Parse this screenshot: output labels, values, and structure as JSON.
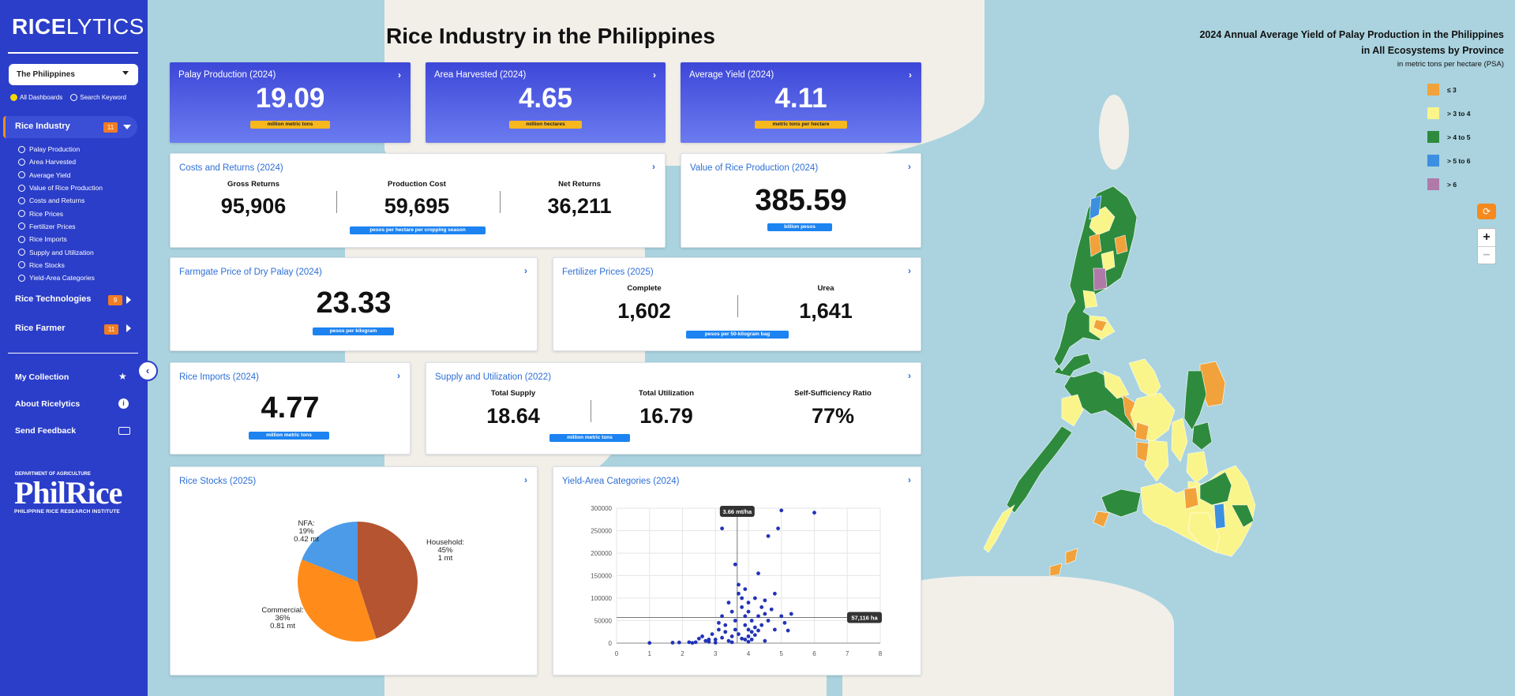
{
  "sidebar": {
    "logo_bold": "RICE",
    "logo_light": "LYTICS",
    "country_select": "The Philippines",
    "radio_all": "All Dashboards",
    "radio_search": "Search Keyword",
    "sections": [
      {
        "label": "Rice Industry",
        "count": "11"
      },
      {
        "label": "Rice Technologies",
        "count": "9"
      },
      {
        "label": "Rice Farmer",
        "count": "11"
      }
    ],
    "sub_items": [
      "Palay Production",
      "Area Harvested",
      "Average Yield",
      "Value of Rice Production",
      "Costs and Returns",
      "Rice Prices",
      "Fertilizer Prices",
      "Rice Imports",
      "Supply and Utilization",
      "Rice Stocks",
      "Yield-Area Categories"
    ],
    "links": [
      {
        "label": "My Collection",
        "icon": "star-icon"
      },
      {
        "label": "About Ricelytics",
        "icon": "info-icon"
      },
      {
        "label": "Send Feedback",
        "icon": "keyboard-icon"
      }
    ],
    "da_label": "DEPARTMENT OF AGRICULTURE",
    "philrice": "PhilRice",
    "philrice_full": "PHILIPPINE RICE RESEARCH INSTITUTE"
  },
  "page_title": "Rice Industry in the Philippines",
  "cards": {
    "palay": {
      "title": "Palay Production (2024)",
      "value": "19.09",
      "unit": "million metric tons"
    },
    "area": {
      "title": "Area Harvested (2024)",
      "value": "4.65",
      "unit": "million hectares"
    },
    "yield": {
      "title": "Average Yield (2024)",
      "value": "4.11",
      "unit": "metric tons per hectare"
    },
    "costs": {
      "title": "Costs and Returns (2024)",
      "cols": [
        {
          "label": "Gross Returns",
          "value": "95,906"
        },
        {
          "label": "Production Cost",
          "value": "59,695"
        },
        {
          "label": "Net Returns",
          "value": "36,211"
        }
      ],
      "unit": "pesos per hectare per cropping season"
    },
    "value": {
      "title": "Value of Rice Production (2024)",
      "value": "385.59",
      "unit": "billion pesos"
    },
    "farmgate": {
      "title": "Farmgate Price of Dry Palay (2024)",
      "value": "23.33",
      "unit": "pesos per kilogram"
    },
    "fertilizer": {
      "title": "Fertilizer Prices (2025)",
      "cols": [
        {
          "label": "Complete",
          "value": "1,602"
        },
        {
          "label": "Urea",
          "value": "1,641"
        }
      ],
      "unit": "pesos per 50-kilogram bag"
    },
    "imports": {
      "title": "Rice Imports (2024)",
      "value": "4.77",
      "unit": "million metric tons"
    },
    "supply": {
      "title": "Supply and Utilization (2022)",
      "cols": [
        {
          "label": "Total Supply",
          "value": "18.64"
        },
        {
          "label": "Total Utilization",
          "value": "16.79"
        },
        {
          "label": "Self-Sufficiency Ratio",
          "value": "77%"
        }
      ],
      "unit": "million metric tons"
    },
    "stocks": {
      "title": "Rice Stocks (2025)"
    },
    "yield_area": {
      "title": "Yield-Area Categories (2024)",
      "tooltip_x": "3.66 mt/ha",
      "tooltip_y": "57,116 ha"
    }
  },
  "map": {
    "title_line1": "2024 Annual Average Yield of Palay Production in the Philippines",
    "title_line2": "in All Ecosystems by Province",
    "subtitle": "in metric tons per hectare (PSA)",
    "legend": [
      {
        "label": "≤ 3",
        "color": "#f2a23a"
      },
      {
        "label": "> 3 to 4",
        "color": "#faf58a"
      },
      {
        "label": "> 4 to 5",
        "color": "#2e8b3e"
      },
      {
        "label": "> 5 to 6",
        "color": "#3d8fe0"
      },
      {
        "label": "> 6",
        "color": "#b07aa8"
      }
    ],
    "zoom_in": "+",
    "zoom_out": "−"
  },
  "chart_data": [
    {
      "type": "pie",
      "title": "",
      "slices": [
        {
          "name": "Household",
          "pct": "45%",
          "amount": "1 mt",
          "value": 45,
          "color": "#b55430"
        },
        {
          "name": "Commercial",
          "pct": "36%",
          "amount": "0.81 mt",
          "value": 36,
          "color": "#ff8c1a"
        },
        {
          "name": "NFA",
          "pct": "19%",
          "amount": "0.42 mt",
          "value": 19,
          "color": "#4b9be8"
        }
      ]
    },
    {
      "type": "scatter",
      "title": "",
      "xlabel": "",
      "ylabel": "",
      "xlim": [
        0,
        8
      ],
      "ylim": [
        0,
        300000
      ],
      "x_ticks": [
        "0",
        "1",
        "2",
        "3",
        "4",
        "5",
        "6",
        "7",
        "8"
      ],
      "y_ticks": [
        "0",
        "50000",
        "100000",
        "150000",
        "200000",
        "250000",
        "300000"
      ],
      "ref_x": 3.66,
      "ref_y": 57116,
      "points": [
        [
          1.0,
          500
        ],
        [
          1.7,
          1000
        ],
        [
          1.9,
          1500
        ],
        [
          2.4,
          2000
        ],
        [
          2.5,
          10000
        ],
        [
          2.6,
          15000
        ],
        [
          2.7,
          5000
        ],
        [
          2.8,
          3000
        ],
        [
          2.9,
          20000
        ],
        [
          3.0,
          8000
        ],
        [
          3.1,
          30000
        ],
        [
          3.1,
          45000
        ],
        [
          3.2,
          60000
        ],
        [
          3.2,
          12000
        ],
        [
          3.3,
          25000
        ],
        [
          3.3,
          40000
        ],
        [
          3.4,
          5000
        ],
        [
          3.4,
          90000
        ],
        [
          3.5,
          70000
        ],
        [
          3.5,
          15000
        ],
        [
          3.6,
          175000
        ],
        [
          3.6,
          50000
        ],
        [
          3.6,
          30000
        ],
        [
          3.7,
          110000
        ],
        [
          3.7,
          130000
        ],
        [
          3.7,
          20000
        ],
        [
          3.8,
          80000
        ],
        [
          3.8,
          100000
        ],
        [
          3.8,
          10000
        ],
        [
          3.9,
          120000
        ],
        [
          3.9,
          60000
        ],
        [
          3.9,
          40000
        ],
        [
          4.0,
          70000
        ],
        [
          4.0,
          90000
        ],
        [
          4.0,
          15000
        ],
        [
          4.0,
          30000
        ],
        [
          4.1,
          50000
        ],
        [
          4.1,
          25000
        ],
        [
          4.1,
          8000
        ],
        [
          4.2,
          35000
        ],
        [
          4.2,
          100000
        ],
        [
          4.2,
          18000
        ],
        [
          4.3,
          155000
        ],
        [
          4.3,
          60000
        ],
        [
          4.3,
          28000
        ],
        [
          4.4,
          80000
        ],
        [
          4.4,
          40000
        ],
        [
          4.5,
          95000
        ],
        [
          4.5,
          65000
        ],
        [
          4.6,
          50000
        ],
        [
          4.6,
          238000
        ],
        [
          4.7,
          75000
        ],
        [
          4.8,
          110000
        ],
        [
          4.8,
          30000
        ],
        [
          4.9,
          255000
        ],
        [
          5.0,
          295000
        ],
        [
          5.0,
          60000
        ],
        [
          5.1,
          45000
        ],
        [
          5.2,
          28000
        ],
        [
          5.3,
          65000
        ],
        [
          6.0,
          290000
        ],
        [
          3.2,
          255000
        ],
        [
          2.2,
          2000
        ],
        [
          2.3,
          500
        ],
        [
          3.0,
          1000
        ],
        [
          3.5,
          2000
        ],
        [
          4.0,
          3000
        ],
        [
          4.5,
          5000
        ],
        [
          3.9,
          8000
        ],
        [
          2.8,
          8000
        ]
      ]
    }
  ]
}
